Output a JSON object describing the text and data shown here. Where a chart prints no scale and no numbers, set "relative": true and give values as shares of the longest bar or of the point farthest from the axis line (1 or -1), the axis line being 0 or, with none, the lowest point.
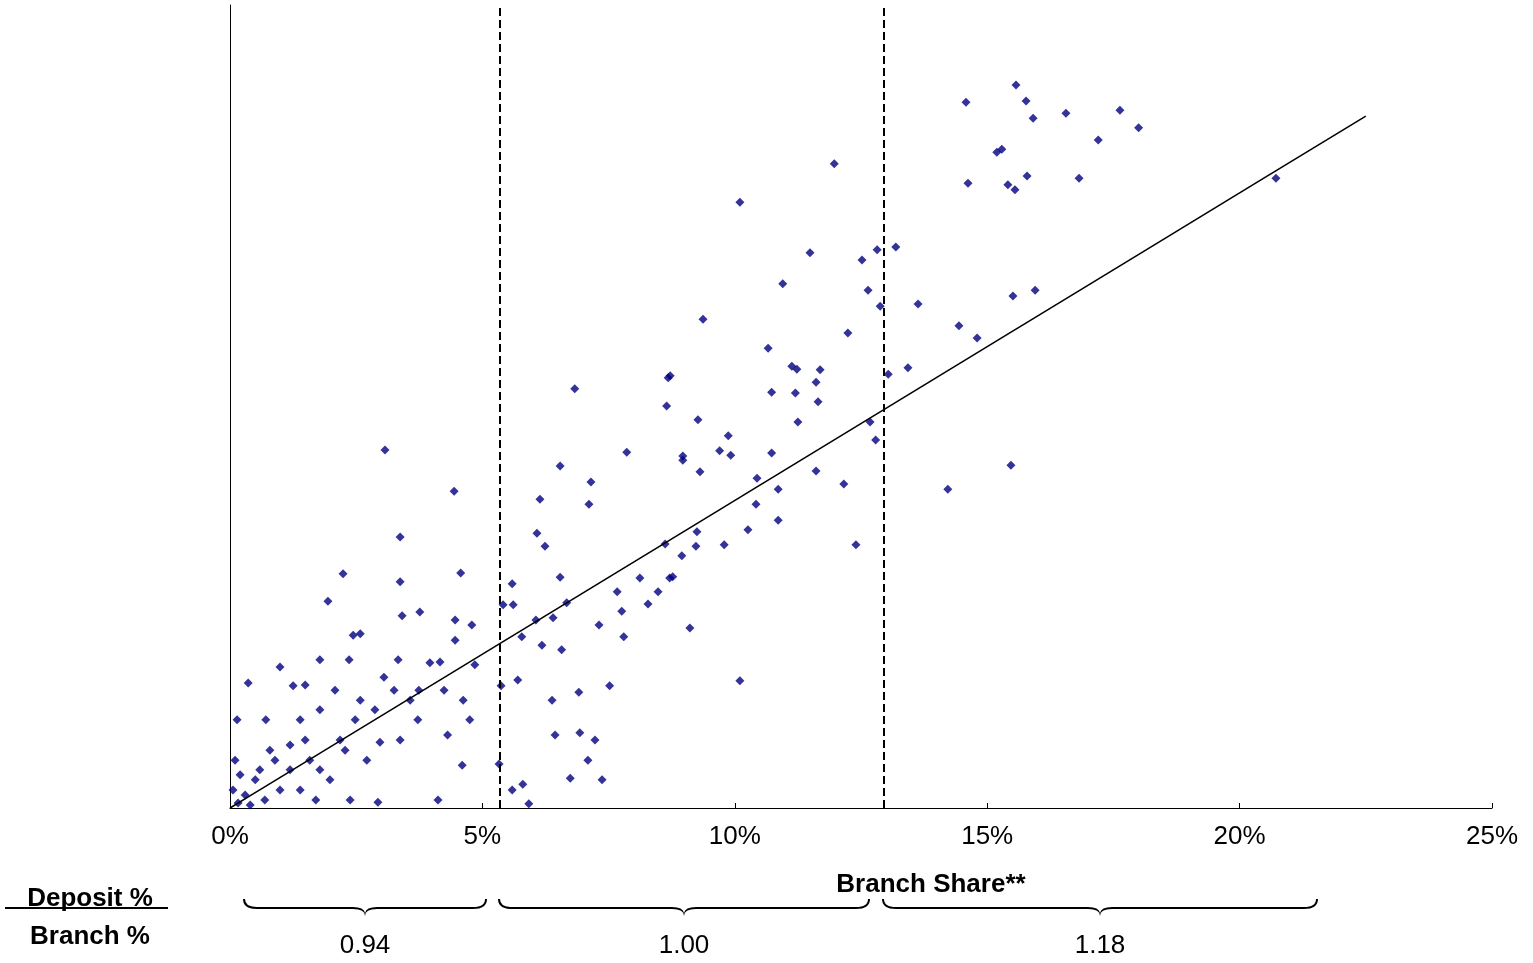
{
  "chart_data": {
    "type": "scatter",
    "relative": true,
    "xlabel": "Branch Share**",
    "xlim": [
      0,
      25
    ],
    "xticks": [
      {
        "value": 0,
        "label": "0%"
      },
      {
        "value": 5,
        "label": "5%"
      },
      {
        "value": 10,
        "label": "10%"
      },
      {
        "value": 15,
        "label": "15%"
      },
      {
        "value": 20,
        "label": "20%"
      },
      {
        "value": 25,
        "label": "25%"
      }
    ],
    "grid": false,
    "annotations": [
      "Deposit %",
      "Branch %",
      "0.94",
      "1.00",
      "1.18"
    ],
    "ref_lines": [
      {
        "axis": "x",
        "value": 5.35,
        "color": "#000000",
        "line_style": "dashed"
      },
      {
        "axis": "x",
        "value": 12.96,
        "color": "#000000",
        "line_style": "dashed"
      }
    ],
    "series": [
      {
        "color": "#000080",
        "marker": "diamond",
        "x": [
          15.57,
          14.58,
          15.77,
          17.63,
          16.56,
          15.91,
          18.0,
          17.2,
          15.29,
          15.19,
          11.97,
          20.72,
          16.82,
          15.79,
          14.62,
          15.41,
          15.55,
          10.1,
          13.19,
          12.82,
          11.49,
          12.52,
          10.95,
          12.64,
          15.95,
          15.51,
          13.63,
          12.88,
          9.37,
          14.44,
          14.8,
          12.24,
          10.66,
          11.13,
          11.23,
          11.69,
          13.43,
          13.04,
          8.68,
          8.72,
          11.61,
          6.83,
          10.73,
          11.2,
          11.65,
          8.65,
          9.27,
          11.25,
          12.68,
          12.79,
          9.87,
          3.07,
          7.86,
          9.7,
          8.97,
          9.92,
          8.97,
          10.73,
          15.47,
          6.54,
          9.31,
          11.61,
          4.44,
          7.15,
          10.44,
          12.16,
          14.22,
          10.86,
          6.14,
          7.11,
          10.42,
          10.86,
          10.26,
          9.25,
          3.37,
          6.08,
          6.24,
          8.62,
          9.79,
          9.23,
          12.4,
          8.95,
          2.24,
          6.54,
          8.77,
          8.71,
          5.59,
          4.57,
          3.37,
          8.12,
          7.67,
          8.48,
          1.94,
          5.41,
          6.67,
          5.61,
          8.28,
          3.76,
          7.76,
          3.41,
          7.31,
          9.11,
          7.8,
          2.44,
          4.46,
          4.79,
          6.06,
          6.4,
          6.18,
          5.78,
          6.57,
          10.1,
          7.52,
          6.91,
          6.38,
          5.37,
          5.7,
          6.44,
          6.93,
          7.23,
          7.09,
          6.74,
          7.37,
          5.33,
          5.8,
          5.59,
          5.92,
          4.6,
          4.12,
          0.36,
          0.14,
          0.99,
          1.25,
          1.78,
          2.36,
          2.58,
          3.33,
          3.96,
          4.16,
          3.74,
          3.25,
          3.05,
          4.24,
          4.85,
          4.75,
          4.31,
          3.72,
          3.37,
          2.71,
          2.87,
          2.18,
          1.78,
          1.39,
          0.71,
          0.79,
          0.59,
          1.19,
          1.58,
          1.98,
          2.38,
          2.93,
          1.7,
          1.39,
          0.99,
          0.5,
          0.3,
          0.16,
          0.4,
          0.69,
          0.2,
          0.1,
          0.06,
          0.89,
          1.19,
          1.49,
          2.48,
          2.08,
          2.58,
          2.97,
          4.62,
          4.46,
          3.57,
          2.28,
          1.78,
          1.49
        ],
        "values": [
          1.0,
          0.976,
          0.978,
          0.965,
          0.961,
          0.954,
          0.941,
          0.924,
          0.911,
          0.907,
          0.891,
          0.871,
          0.871,
          0.874,
          0.864,
          0.862,
          0.855,
          0.838,
          0.776,
          0.772,
          0.768,
          0.758,
          0.725,
          0.716,
          0.716,
          0.708,
          0.697,
          0.694,
          0.676,
          0.667,
          0.65,
          0.657,
          0.636,
          0.611,
          0.607,
          0.606,
          0.609,
          0.6,
          0.595,
          0.598,
          0.589,
          0.58,
          0.575,
          0.574,
          0.562,
          0.556,
          0.537,
          0.534,
          0.534,
          0.509,
          0.515,
          0.495,
          0.492,
          0.494,
          0.487,
          0.488,
          0.481,
          0.491,
          0.474,
          0.473,
          0.465,
          0.466,
          0.438,
          0.451,
          0.456,
          0.448,
          0.441,
          0.441,
          0.427,
          0.42,
          0.42,
          0.398,
          0.385,
          0.382,
          0.375,
          0.38,
          0.362,
          0.365,
          0.364,
          0.362,
          0.364,
          0.349,
          0.324,
          0.319,
          0.32,
          0.318,
          0.31,
          0.325,
          0.313,
          0.318,
          0.299,
          0.299,
          0.286,
          0.281,
          0.284,
          0.281,
          0.282,
          0.271,
          0.272,
          0.266,
          0.253,
          0.249,
          0.237,
          0.239,
          0.26,
          0.253,
          0.26,
          0.263,
          0.225,
          0.237,
          0.219,
          0.176,
          0.169,
          0.16,
          0.149,
          0.169,
          0.177,
          0.101,
          0.104,
          0.094,
          0.066,
          0.041,
          0.039,
          0.061,
          0.033,
          0.025,
          0.006,
          0.059,
          0.011,
          0.173,
          0.122,
          0.195,
          0.169,
          0.205,
          0.205,
          0.241,
          0.205,
          0.201,
          0.202,
          0.163,
          0.163,
          0.181,
          0.163,
          0.198,
          0.122,
          0.101,
          0.122,
          0.094,
          0.066,
          0.136,
          0.094,
          0.136,
          0.122,
          0.122,
          0.08,
          0.053,
          0.053,
          0.066,
          0.039,
          0.011,
          0.008,
          0.011,
          0.025,
          0.025,
          0.039,
          0.018,
          0.007,
          0.004,
          0.011,
          0.046,
          0.066,
          0.025,
          0.066,
          0.087,
          0.094,
          0.122,
          0.163,
          0.149,
          0.091,
          0.149,
          0.232,
          0.149,
          0.08,
          0.053,
          0.17
        ]
      },
      {
        "type": "line",
        "color": "#000000",
        "marker": "none",
        "x": [
          0,
          22.5
        ],
        "values": [
          0,
          0.957
        ]
      }
    ]
  }
}
